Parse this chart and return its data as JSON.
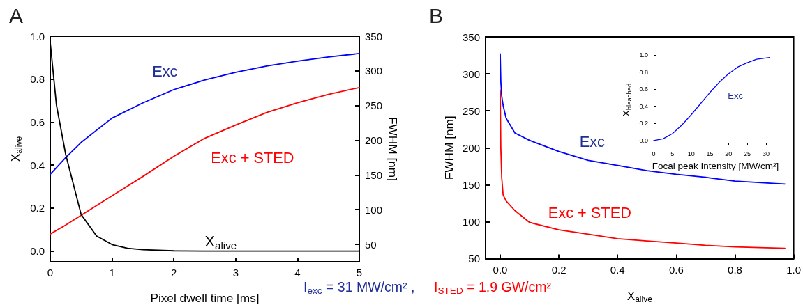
{
  "chart_data": [
    {
      "type": "line",
      "title": "A",
      "xlabel": "Pixel dwell time [ms]",
      "ylabel": "X$_{alive}$",
      "y2label": "FWHM [nm]",
      "xlim": [
        0,
        5
      ],
      "xticks": [
        0,
        1,
        2,
        3,
        4,
        5
      ],
      "ylim": [
        -0.05,
        1
      ],
      "yticks": [
        {
          "value": 0,
          "label": "0.0"
        },
        {
          "value": 0.2,
          "label": "0.2"
        },
        {
          "value": 0.4,
          "label": "0.4"
        },
        {
          "value": 0.6,
          "label": "0.6"
        },
        {
          "value": 0.8,
          "label": "0.8"
        },
        {
          "value": 1,
          "label": "1.0"
        }
      ],
      "y2lim": [
        25,
        350
      ],
      "y2ticks": [
        50,
        100,
        150,
        200,
        250,
        300,
        350
      ],
      "series": [
        {
          "name": "Exc",
          "color": "#0000ff",
          "axis": "y2",
          "x": [
            0,
            0.25,
            0.5,
            1,
            1.5,
            2,
            2.5,
            3,
            3.5,
            4,
            4.5,
            5
          ],
          "values": [
            151,
            175,
            197,
            232,
            254,
            273,
            287,
            298,
            307,
            314,
            320,
            325
          ]
        },
        {
          "name": "Exc + STED",
          "color": "#ff0000",
          "axis": "y2",
          "x": [
            0,
            0.25,
            0.5,
            1,
            1.5,
            2,
            2.5,
            3,
            3.5,
            4,
            4.5,
            5
          ],
          "values": [
            65,
            78,
            92,
            120,
            148,
            177,
            203,
            222,
            240,
            254,
            266,
            276
          ]
        },
        {
          "name": "X$_{alive}$",
          "color": "#000000",
          "x": [
            0,
            0.1,
            0.25,
            0.5,
            0.75,
            1,
            1.25,
            1.5,
            2,
            2.5,
            3,
            3.5,
            4,
            4.5,
            5
          ],
          "values": [
            0.97,
            0.68,
            0.45,
            0.17,
            0.07,
            0.03,
            0.013,
            0.006,
            0.001,
            0,
            0,
            0,
            0,
            0,
            0
          ]
        }
      ],
      "annotations": [
        "I$_{exc}$ = 31 MW/cm² ,",
        "I$_{STED}$ = 1.9 GW/cm²"
      ]
    },
    {
      "type": "line",
      "title": "B",
      "xlabel": "X$_{alive}$",
      "ylabel": "FWHM [nm]",
      "xlim": [
        -0.05,
        1
      ],
      "xticks": [
        {
          "value": 0,
          "label": "0.0"
        },
        {
          "value": 0.2,
          "label": "0.2"
        },
        {
          "value": 0.4,
          "label": "0.4"
        },
        {
          "value": 0.6,
          "label": "0.6"
        },
        {
          "value": 0.8,
          "label": "0.8"
        },
        {
          "value": 1,
          "label": "1.0"
        }
      ],
      "ylim": [
        50,
        350
      ],
      "yticks": [
        50,
        100,
        150,
        200,
        250,
        300,
        350
      ],
      "series": [
        {
          "name": "Exc",
          "color": "#0000ff",
          "x": [
            0,
            0.002,
            0.005,
            0.01,
            0.02,
            0.05,
            0.1,
            0.2,
            0.3,
            0.4,
            0.5,
            0.6,
            0.7,
            0.8,
            0.97
          ],
          "values": [
            327,
            290,
            270,
            257,
            240,
            220,
            210,
            195,
            183,
            176,
            169,
            164,
            160,
            155,
            151
          ]
        },
        {
          "name": "Exc + STED",
          "color": "#ff0000",
          "x": [
            0,
            0.002,
            0.005,
            0.01,
            0.02,
            0.05,
            0.1,
            0.2,
            0.3,
            0.4,
            0.5,
            0.6,
            0.7,
            0.8,
            0.97
          ],
          "values": [
            278,
            200,
            160,
            136,
            128,
            115,
            99,
            89,
            83,
            77,
            74,
            71,
            68,
            66,
            64
          ]
        }
      ]
    },
    {
      "type": "line",
      "xlabel": "Focal peak Intensity [MW/cm²]",
      "ylabel": "X$_{bleached}$",
      "xlim": [
        0,
        33
      ],
      "xticks": [
        0,
        5,
        10,
        15,
        20,
        25,
        30
      ],
      "ylim": [
        -0.05,
        1
      ],
      "yticks": [
        {
          "value": 0,
          "label": "0.0"
        },
        {
          "value": 0.2,
          "label": "0.2"
        },
        {
          "value": 0.4,
          "label": "0.4"
        },
        {
          "value": 0.6,
          "label": "0.6"
        },
        {
          "value": 0.8,
          "label": "0.8"
        },
        {
          "value": 1,
          "label": "1.0"
        }
      ],
      "series": [
        {
          "name": "Exc",
          "color": "#0000ff",
          "x": [
            0,
            2.5,
            5,
            7.5,
            10,
            12.5,
            15,
            17.5,
            20,
            22.5,
            25,
            27.5,
            31
          ],
          "values": [
            0,
            0.02,
            0.08,
            0.18,
            0.3,
            0.43,
            0.56,
            0.68,
            0.78,
            0.86,
            0.91,
            0.95,
            0.97
          ]
        }
      ]
    }
  ]
}
